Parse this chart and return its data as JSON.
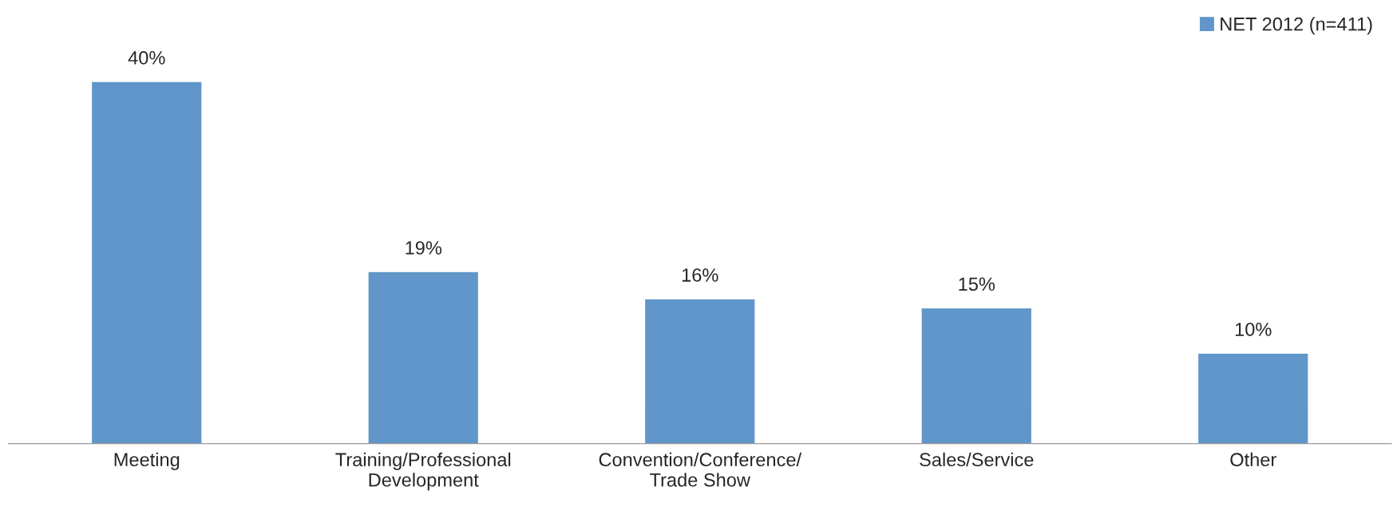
{
  "chart_data": {
    "type": "bar",
    "categories": [
      "Meeting",
      "Training/Professional\nDevelopment",
      "Convention/Conference/\nTrade Show",
      "Sales/Service",
      "Other"
    ],
    "series": [
      {
        "name": "NET 2012 (n=411)",
        "color": "#6096c9",
        "values": [
          40,
          19,
          16,
          15,
          10
        ],
        "value_labels": [
          "40%",
          "19%",
          "16%",
          "15%",
          "10%"
        ]
      }
    ],
    "legend": "top right",
    "grid": false
  }
}
